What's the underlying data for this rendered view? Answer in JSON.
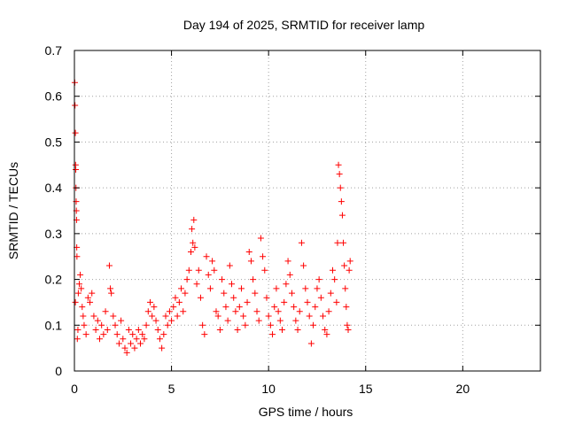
{
  "chart_data": {
    "type": "scatter",
    "title": "Day 194 of 2025, SRMTID for receiver lamp",
    "xlabel": "GPS time / hours",
    "ylabel": "SRMTID / TECUs",
    "xlim": [
      0,
      24
    ],
    "ylim": [
      0,
      0.7
    ],
    "xticks": [
      0,
      5,
      10,
      15,
      20
    ],
    "yticks": [
      0,
      0.1,
      0.2,
      0.3,
      0.4,
      0.5,
      0.6,
      0.7
    ],
    "xtick_labels": [
      "0",
      "5",
      "10",
      "15",
      "20"
    ],
    "ytick_labels": [
      "0",
      "0.1",
      "0.2",
      "0.3",
      "0.4",
      "0.5",
      "0.6",
      "0.7"
    ],
    "grid": true,
    "marker": "+",
    "series": [
      {
        "name": "SRMTID",
        "color": "#ff0000",
        "points": [
          [
            0.02,
            0.63
          ],
          [
            0.03,
            0.58
          ],
          [
            0.05,
            0.52
          ],
          [
            0.06,
            0.45
          ],
          [
            0.07,
            0.44
          ],
          [
            0.08,
            0.4
          ],
          [
            0.09,
            0.37
          ],
          [
            0.1,
            0.35
          ],
          [
            0.11,
            0.33
          ],
          [
            0.12,
            0.27
          ],
          [
            0.13,
            0.25
          ],
          [
            0.05,
            0.15
          ],
          [
            0.15,
            0.07
          ],
          [
            0.18,
            0.09
          ],
          [
            0.2,
            0.17
          ],
          [
            0.25,
            0.19
          ],
          [
            0.3,
            0.21
          ],
          [
            0.35,
            0.18
          ],
          [
            0.4,
            0.14
          ],
          [
            0.45,
            0.12
          ],
          [
            0.5,
            0.1
          ],
          [
            0.6,
            0.08
          ],
          [
            0.7,
            0.16
          ],
          [
            0.8,
            0.15
          ],
          [
            0.9,
            0.17
          ],
          [
            1.0,
            0.12
          ],
          [
            1.1,
            0.09
          ],
          [
            1.2,
            0.11
          ],
          [
            1.3,
            0.07
          ],
          [
            1.4,
            0.1
          ],
          [
            1.5,
            0.08
          ],
          [
            1.6,
            0.13
          ],
          [
            1.7,
            0.09
          ],
          [
            1.8,
            0.23
          ],
          [
            1.85,
            0.18
          ],
          [
            1.9,
            0.17
          ],
          [
            2.0,
            0.12
          ],
          [
            2.1,
            0.1
          ],
          [
            2.2,
            0.08
          ],
          [
            2.3,
            0.06
          ],
          [
            2.4,
            0.11
          ],
          [
            2.5,
            0.07
          ],
          [
            2.6,
            0.05
          ],
          [
            2.7,
            0.04
          ],
          [
            2.8,
            0.09
          ],
          [
            2.9,
            0.06
          ],
          [
            3.0,
            0.08
          ],
          [
            3.1,
            0.05
          ],
          [
            3.2,
            0.07
          ],
          [
            3.3,
            0.09
          ],
          [
            3.4,
            0.06
          ],
          [
            3.5,
            0.08
          ],
          [
            3.6,
            0.07
          ],
          [
            3.7,
            0.1
          ],
          [
            3.8,
            0.13
          ],
          [
            3.9,
            0.15
          ],
          [
            4.0,
            0.12
          ],
          [
            4.1,
            0.14
          ],
          [
            4.2,
            0.11
          ],
          [
            4.3,
            0.09
          ],
          [
            4.4,
            0.07
          ],
          [
            4.5,
            0.05
          ],
          [
            4.6,
            0.08
          ],
          [
            4.7,
            0.12
          ],
          [
            4.8,
            0.1
          ],
          [
            4.9,
            0.13
          ],
          [
            5.0,
            0.11
          ],
          [
            5.1,
            0.14
          ],
          [
            5.2,
            0.16
          ],
          [
            5.3,
            0.12
          ],
          [
            5.4,
            0.15
          ],
          [
            5.5,
            0.18
          ],
          [
            5.6,
            0.13
          ],
          [
            5.7,
            0.17
          ],
          [
            5.8,
            0.2
          ],
          [
            5.9,
            0.22
          ],
          [
            6.0,
            0.26
          ],
          [
            6.05,
            0.31
          ],
          [
            6.1,
            0.28
          ],
          [
            6.15,
            0.33
          ],
          [
            6.2,
            0.27
          ],
          [
            6.3,
            0.19
          ],
          [
            6.4,
            0.22
          ],
          [
            6.5,
            0.16
          ],
          [
            6.6,
            0.1
          ],
          [
            6.7,
            0.08
          ],
          [
            6.8,
            0.25
          ],
          [
            6.9,
            0.21
          ],
          [
            7.0,
            0.18
          ],
          [
            7.1,
            0.24
          ],
          [
            7.2,
            0.22
          ],
          [
            7.3,
            0.13
          ],
          [
            7.4,
            0.12
          ],
          [
            7.5,
            0.09
          ],
          [
            7.6,
            0.2
          ],
          [
            7.7,
            0.17
          ],
          [
            7.8,
            0.14
          ],
          [
            7.9,
            0.11
          ],
          [
            8.0,
            0.23
          ],
          [
            8.1,
            0.19
          ],
          [
            8.2,
            0.16
          ],
          [
            8.3,
            0.13
          ],
          [
            8.4,
            0.09
          ],
          [
            8.5,
            0.14
          ],
          [
            8.6,
            0.18
          ],
          [
            8.7,
            0.12
          ],
          [
            8.8,
            0.1
          ],
          [
            8.9,
            0.15
          ],
          [
            9.0,
            0.26
          ],
          [
            9.1,
            0.24
          ],
          [
            9.2,
            0.2
          ],
          [
            9.3,
            0.17
          ],
          [
            9.4,
            0.13
          ],
          [
            9.5,
            0.11
          ],
          [
            9.6,
            0.29
          ],
          [
            9.7,
            0.25
          ],
          [
            9.8,
            0.22
          ],
          [
            9.9,
            0.16
          ],
          [
            10.0,
            0.12
          ],
          [
            10.1,
            0.1
          ],
          [
            10.2,
            0.08
          ],
          [
            10.3,
            0.14
          ],
          [
            10.4,
            0.18
          ],
          [
            10.5,
            0.13
          ],
          [
            10.6,
            0.11
          ],
          [
            10.7,
            0.09
          ],
          [
            10.8,
            0.15
          ],
          [
            10.9,
            0.19
          ],
          [
            11.0,
            0.24
          ],
          [
            11.1,
            0.21
          ],
          [
            11.2,
            0.17
          ],
          [
            11.3,
            0.14
          ],
          [
            11.4,
            0.11
          ],
          [
            11.5,
            0.09
          ],
          [
            11.6,
            0.13
          ],
          [
            11.7,
            0.28
          ],
          [
            11.8,
            0.23
          ],
          [
            11.9,
            0.18
          ],
          [
            12.0,
            0.15
          ],
          [
            12.1,
            0.12
          ],
          [
            12.2,
            0.06
          ],
          [
            12.3,
            0.1
          ],
          [
            12.4,
            0.14
          ],
          [
            12.5,
            0.18
          ],
          [
            12.6,
            0.2
          ],
          [
            12.7,
            0.16
          ],
          [
            12.8,
            0.12
          ],
          [
            12.9,
            0.09
          ],
          [
            13.0,
            0.08
          ],
          [
            13.1,
            0.13
          ],
          [
            13.2,
            0.17
          ],
          [
            13.3,
            0.22
          ],
          [
            13.4,
            0.2
          ],
          [
            13.5,
            0.15
          ],
          [
            13.55,
            0.28
          ],
          [
            13.6,
            0.45
          ],
          [
            13.65,
            0.43
          ],
          [
            13.7,
            0.4
          ],
          [
            13.75,
            0.37
          ],
          [
            13.8,
            0.34
          ],
          [
            13.85,
            0.28
          ],
          [
            13.9,
            0.23
          ],
          [
            13.95,
            0.18
          ],
          [
            14.0,
            0.14
          ],
          [
            14.05,
            0.1
          ],
          [
            14.1,
            0.09
          ],
          [
            14.15,
            0.22
          ],
          [
            14.2,
            0.24
          ]
        ]
      }
    ]
  }
}
